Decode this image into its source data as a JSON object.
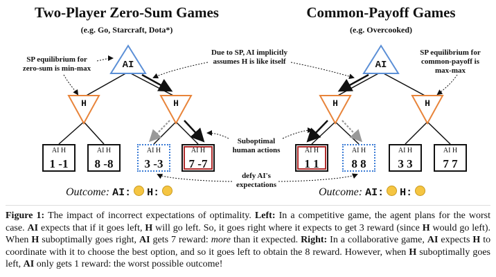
{
  "left": {
    "title": "Two-Player Zero-Sum Games",
    "subtitle": "(e.g. Go, Starcraft, Dota*)",
    "root": "AI",
    "h_left": "H",
    "h_right": "H",
    "annotation": [
      "SP equilibrium for",
      "zero-sum is min-max"
    ],
    "leaves": [
      {
        "header": "AI  H",
        "value": "1 -1"
      },
      {
        "header": "AI  H",
        "value": "8 -8"
      },
      {
        "header": "AI  H",
        "value": "3 -3"
      },
      {
        "header": "AI  H",
        "value": "7 -7"
      }
    ],
    "outcome_label": "Outcome:",
    "outcome_ai": "AI:",
    "outcome_h": "H:"
  },
  "right": {
    "title": "Common-Payoff Games",
    "subtitle": "(e.g. Overcooked)",
    "root": "AI",
    "h_left": "H",
    "h_right": "H",
    "annotation": [
      "SP equilibrium for",
      "common-payoff is",
      "max-max"
    ],
    "leaves": [
      {
        "header": "AI  H",
        "value": "1 1"
      },
      {
        "header": "AI  H",
        "value": "8 8"
      },
      {
        "header": "AI  H",
        "value": "3 3"
      },
      {
        "header": "AI  H",
        "value": "7 7"
      }
    ],
    "outcome_label": "Outcome:",
    "outcome_ai": "AI:",
    "outcome_h": "H:"
  },
  "middle": {
    "due_to_sp": [
      "Due to SP, AI implicitly",
      "assumes H is like itself"
    ],
    "suboptimal": [
      "Suboptimal",
      "human actions"
    ],
    "defy": [
      "defy AI's",
      "expectations"
    ]
  },
  "caption": {
    "figure_label": "Figure 1:",
    "intro": "The impact of incorrect expectations of optimality.",
    "left_label": "Left:",
    "left_text_1": "In a competitive game, the agent plans for the worst case.",
    "ai1": "AI",
    "left_text_2": "expects that if it goes left,",
    "h1": "H",
    "left_text_3": "will go left. So, it goes right where it expects to get 3 reward (since",
    "h2": "H",
    "left_text_4": "would go left). When",
    "h3": "H",
    "left_text_5": "suboptimally goes right,",
    "ai2": "AI",
    "left_text_6": "gets 7 reward:",
    "more": "more",
    "left_text_7": "than it expected.",
    "right_label": "Right:",
    "right_text_1": "In a collaborative game,",
    "ai3": "AI",
    "right_text_2": "expects",
    "h4": "H",
    "right_text_3": "to coordinate with it to choose the best option, and so it goes left to obtain the 8 reward. However, when",
    "h5": "H",
    "right_text_4": "suboptimally goes left,",
    "ai4": "AI",
    "right_text_5": "only gets 1 reward: the worst possible outcome!"
  },
  "colors": {
    "ai_triangle": "#5b8fd6",
    "h_triangle": "#e8843a",
    "red_box": "#b02a2a",
    "blue_box": "#3a7bd5"
  }
}
